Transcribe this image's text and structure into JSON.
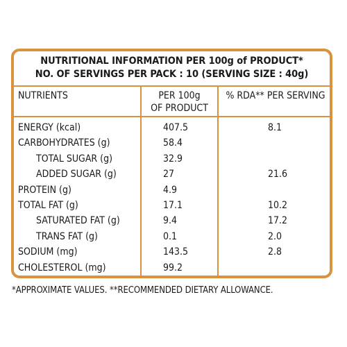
{
  "title": {
    "line1": "NUTRITIONAL INFORMATION PER 100g of PRODUCT*",
    "line2": "NO. OF SERVINGS PER PACK : 10 (SERVING SIZE : 40g)"
  },
  "table": {
    "headers": {
      "nutrients": "NUTRIENTS",
      "per100g_line1": "PER 100g",
      "per100g_line2": "OF PRODUCT",
      "rda": "% RDA** PER SERVING"
    },
    "rows": [
      {
        "label": "ENERGY (kcal)",
        "per100g": "407.5",
        "rda": "8.1",
        "indent": false
      },
      {
        "label": "CARBOHYDRATES (g)",
        "per100g": "58.4",
        "rda": "",
        "indent": false
      },
      {
        "label": "TOTAL SUGAR (g)",
        "per100g": "32.9",
        "rda": "",
        "indent": true
      },
      {
        "label": "ADDED SUGAR (g)",
        "per100g": "27",
        "rda": "21.6",
        "indent": true
      },
      {
        "label": "PROTEIN (g)",
        "per100g": "4.9",
        "rda": "",
        "indent": false
      },
      {
        "label": "TOTAL FAT (g)",
        "per100g": "17.1",
        "rda": "10.2",
        "indent": false
      },
      {
        "label": "SATURATED FAT (g)",
        "per100g": "9.4",
        "rda": "17.2",
        "indent": true
      },
      {
        "label": "TRANS FAT (g)",
        "per100g": "0.1",
        "rda": "2.0",
        "indent": true
      },
      {
        "label": "SODIUM (mg)",
        "per100g": "143.5",
        "rda": "2.8",
        "indent": false
      },
      {
        "label": "CHOLESTEROL (mg)",
        "per100g": "99.2",
        "rda": "",
        "indent": false
      }
    ]
  },
  "footnote": "*APPROXIMATE VALUES.  **RECOMMENDED DIETARY ALLOWANCE.",
  "colors": {
    "border": "#d9923e",
    "text": "#1a1a1a"
  }
}
